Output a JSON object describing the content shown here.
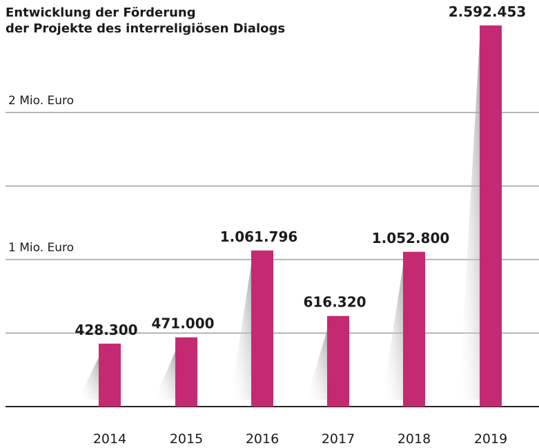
{
  "chart_data": {
    "type": "bar",
    "title": [
      "Entwicklung der Förderung",
      "der Projekte des interreligiösen Dialogs"
    ],
    "categories": [
      "2014",
      "2015",
      "2016",
      "2017",
      "2018",
      "2019"
    ],
    "values": [
      428300,
      471000,
      1061796,
      616320,
      1052800,
      2592453
    ],
    "value_labels": [
      "428.300",
      "471.000",
      "1.061.796",
      "616.320",
      "1.052.800",
      "2.592.453"
    ],
    "color": "#c42a72",
    "ylim": [
      0,
      2750000
    ],
    "yticks": [
      {
        "value": 1000000,
        "label": "1 Mio. Euro"
      },
      {
        "value": 2000000,
        "label": "2  Mio. Euro"
      }
    ],
    "grid_lines": [
      500000,
      1000000,
      1500000,
      2000000
    ],
    "grid": true
  }
}
